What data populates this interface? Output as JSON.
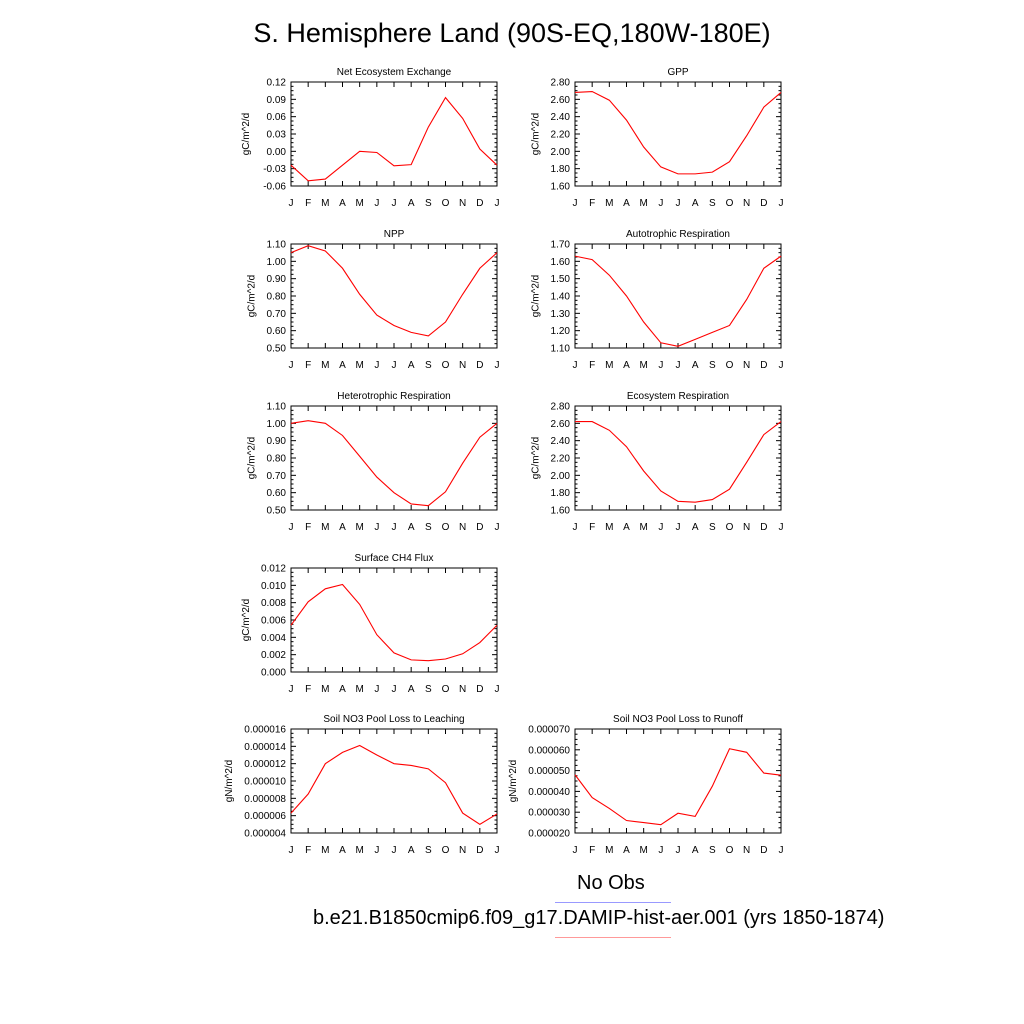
{
  "title": "S. Hemisphere Land (90S-EQ,180W-180E)",
  "months": [
    "J",
    "F",
    "M",
    "A",
    "M",
    "J",
    "J",
    "A",
    "S",
    "O",
    "N",
    "D",
    "J"
  ],
  "line_color": "#ff0000",
  "chart_data": [
    {
      "type": "line",
      "title": "Net Ecosystem Exchange",
      "ylabel": "gC/m^2/d",
      "ylim": [
        -0.06,
        0.12
      ],
      "yticks": [
        "-0.06",
        "-0.03",
        "0.00",
        "0.03",
        "0.06",
        "0.09",
        "0.12"
      ],
      "yticks_values": [
        -0.06,
        -0.03,
        0.0,
        0.03,
        0.06,
        0.09,
        0.12
      ],
      "values": [
        -0.024,
        -0.051,
        -0.048,
        -0.024,
        0.0,
        -0.002,
        -0.025,
        -0.023,
        0.042,
        0.093,
        0.057,
        0.004,
        -0.024
      ]
    },
    {
      "type": "line",
      "title": "GPP",
      "ylabel": "gC/m^2/d",
      "ylim": [
        1.6,
        2.8
      ],
      "yticks": [
        "1.60",
        "1.80",
        "2.00",
        "2.20",
        "2.40",
        "2.60",
        "2.80"
      ],
      "yticks_values": [
        1.6,
        1.8,
        2.0,
        2.2,
        2.4,
        2.6,
        2.8
      ],
      "values": [
        2.68,
        2.69,
        2.59,
        2.36,
        2.05,
        1.82,
        1.74,
        1.74,
        1.76,
        1.88,
        2.18,
        2.51,
        2.68
      ]
    },
    {
      "type": "line",
      "title": "NPP",
      "ylabel": "gC/m^2/d",
      "ylim": [
        0.5,
        1.1
      ],
      "yticks": [
        "0.50",
        "0.60",
        "0.70",
        "0.80",
        "0.90",
        "1.00",
        "1.10"
      ],
      "yticks_values": [
        0.5,
        0.6,
        0.7,
        0.8,
        0.9,
        1.0,
        1.1
      ],
      "values": [
        1.05,
        1.09,
        1.06,
        0.96,
        0.81,
        0.69,
        0.63,
        0.59,
        0.57,
        0.65,
        0.81,
        0.96,
        1.05
      ]
    },
    {
      "type": "line",
      "title": "Autotrophic Respiration",
      "ylabel": "gC/m^2/d",
      "ylim": [
        1.1,
        1.7
      ],
      "yticks": [
        "1.10",
        "1.20",
        "1.30",
        "1.40",
        "1.50",
        "1.60",
        "1.70"
      ],
      "yticks_values": [
        1.1,
        1.2,
        1.3,
        1.4,
        1.5,
        1.6,
        1.7
      ],
      "values": [
        1.63,
        1.61,
        1.52,
        1.4,
        1.25,
        1.13,
        1.11,
        1.15,
        1.19,
        1.23,
        1.38,
        1.56,
        1.63
      ]
    },
    {
      "type": "line",
      "title": "Heterotrophic Respiration",
      "ylabel": "gC/m^2/d",
      "ylim": [
        0.5,
        1.1
      ],
      "yticks": [
        "0.50",
        "0.60",
        "0.70",
        "0.80",
        "0.90",
        "1.00",
        "1.10"
      ],
      "yticks_values": [
        0.5,
        0.6,
        0.7,
        0.8,
        0.9,
        1.0,
        1.1
      ],
      "values": [
        1.0,
        1.015,
        1.0,
        0.93,
        0.81,
        0.69,
        0.6,
        0.535,
        0.525,
        0.605,
        0.77,
        0.92,
        1.0
      ]
    },
    {
      "type": "line",
      "title": "Ecosystem Respiration",
      "ylabel": "gC/m^2/d",
      "ylim": [
        1.6,
        2.8
      ],
      "yticks": [
        "1.60",
        "1.80",
        "2.00",
        "2.20",
        "2.40",
        "2.60",
        "2.80"
      ],
      "yticks_values": [
        1.6,
        1.8,
        2.0,
        2.2,
        2.4,
        2.6,
        2.8
      ],
      "values": [
        2.62,
        2.62,
        2.52,
        2.33,
        2.05,
        1.82,
        1.7,
        1.69,
        1.72,
        1.84,
        2.15,
        2.47,
        2.62
      ]
    },
    {
      "type": "line",
      "title": "Surface CH4 Flux",
      "ylabel": "gC/m^2/d",
      "ylim": [
        0.0,
        0.012
      ],
      "yticks": [
        "0.000",
        "0.002",
        "0.004",
        "0.006",
        "0.008",
        "0.010",
        "0.012"
      ],
      "yticks_values": [
        0.0,
        0.002,
        0.004,
        0.006,
        0.008,
        0.01,
        0.012
      ],
      "values": [
        0.0054,
        0.0081,
        0.0096,
        0.0101,
        0.0078,
        0.0043,
        0.0022,
        0.0014,
        0.0013,
        0.0015,
        0.0021,
        0.0034,
        0.0054
      ]
    },
    {
      "type": "line",
      "title": "Soil NO3 Pool Loss to Leaching",
      "ylabel": "gN/m^2/d",
      "ylim": [
        4e-06,
        1.6e-05
      ],
      "yticks": [
        "0.000004",
        "0.000006",
        "0.000008",
        "0.000010",
        "0.000012",
        "0.000014",
        "0.000016"
      ],
      "yticks_values": [
        4e-06,
        6e-06,
        8e-06,
        1e-05,
        1.2e-05,
        1.4e-05,
        1.6e-05
      ],
      "values": [
        6.3e-06,
        8.5e-06,
        1.2e-05,
        1.33e-05,
        1.41e-05,
        1.3e-05,
        1.2e-05,
        1.18e-05,
        1.14e-05,
        9.8e-06,
        6.3e-06,
        5e-06,
        6.2e-06
      ]
    },
    {
      "type": "line",
      "title": "Soil NO3 Pool Loss to Runoff",
      "ylabel": "gN/m^2/d",
      "ylim": [
        2e-05,
        7e-05
      ],
      "yticks": [
        "0.000020",
        "0.000030",
        "0.000040",
        "0.000050",
        "0.000060",
        "0.000070"
      ],
      "yticks_values": [
        2e-05,
        3e-05,
        4e-05,
        5e-05,
        6e-05,
        7e-05
      ],
      "values": [
        4.8e-05,
        3.7e-05,
        3.18e-05,
        2.6e-05,
        2.5e-05,
        2.4e-05,
        2.95e-05,
        2.8e-05,
        4.25e-05,
        6.05e-05,
        5.88e-05,
        4.88e-05,
        4.78e-05
      ]
    }
  ],
  "legend": {
    "obs_label": "No Obs",
    "obs_color": "#9999ff",
    "model_label": "b.e21.B1850cmip6.f09_g17.DAMIP-hist-aer.001 (yrs 1850-1874)",
    "model_color": "#ff9999"
  }
}
